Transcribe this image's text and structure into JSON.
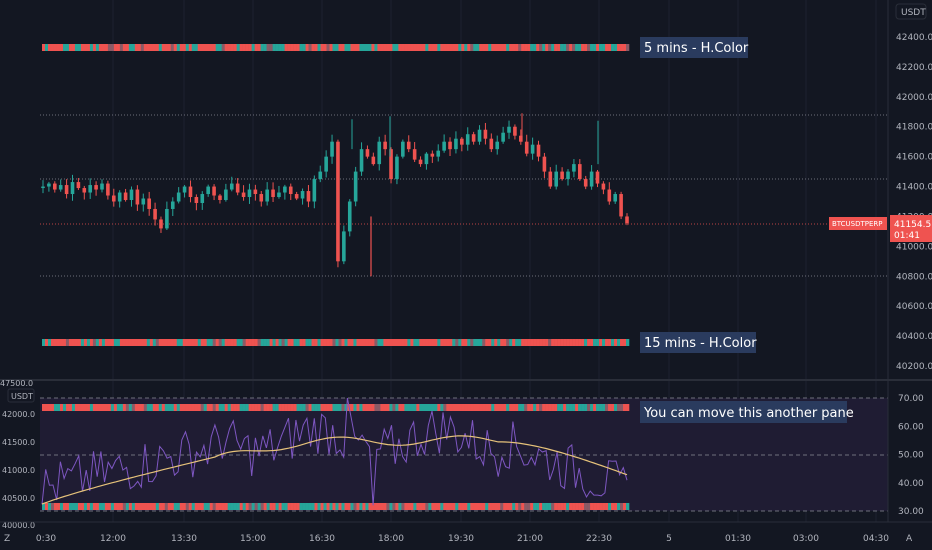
{
  "chart": {
    "currency_label": "USDT",
    "symbol_tag": "BTCUSDTPERP",
    "last_price": "41154.5",
    "countdown": "01:41",
    "price_ticks": [
      "42400.0",
      "42200.0",
      "42000.0",
      "41800.0",
      "41600.0",
      "41400.0",
      "41200.0",
      "41000.0",
      "40800.0",
      "40600.0",
      "40400.0",
      "40200.0"
    ],
    "rsi_ticks": [
      "70.00",
      "60.00",
      "50.00",
      "40.00",
      "30.00"
    ],
    "left_ticks": [
      "42000.0",
      "41500.0",
      "41000.0",
      "40500.0",
      "40000.0"
    ],
    "left_top_partial": "47500.0",
    "left_currency_label": "USDT",
    "time_ticks": [
      "0:30",
      "12:00",
      "13:30",
      "15:00",
      "16:30",
      "18:00",
      "19:30",
      "21:00",
      "22:30",
      "5",
      "01:30",
      "03:00",
      "04:30"
    ],
    "annotations": {
      "five_min": "5 mins - H.Color",
      "fifteen_min": "15 mins - H.Color",
      "move_pane": "You can move this another pane"
    },
    "bottom_left_icon": "Z",
    "bottom_right_icon": "A",
    "colors": {
      "background": "#131722",
      "bull": "#26a69a",
      "bear": "#ef5350",
      "rsi_line": "#7e57c2",
      "rsi_ma": "#e6c27a",
      "rsi_band": "#2a2440",
      "tag_bg": "#ef5350",
      "annotation_bg": "#2a3b5e"
    }
  },
  "chart_data": {
    "type": "candlestick",
    "title": "",
    "price_axis_range": [
      40100,
      42500
    ],
    "horizontal_levels": [
      41900,
      41450,
      41154.5,
      40800
    ],
    "close_path": [
      41400,
      41420,
      41380,
      41410,
      41350,
      41430,
      41390,
      41360,
      41410,
      41380,
      41420,
      41340,
      41300,
      41360,
      41310,
      41380,
      41280,
      41320,
      41250,
      41180,
      41120,
      41250,
      41300,
      41360,
      41400,
      41330,
      41290,
      41350,
      41400,
      41340,
      41310,
      41380,
      41420,
      41360,
      41330,
      41380,
      41350,
      41300,
      41380,
      41330,
      41360,
      41400,
      41350,
      41320,
      41370,
      41300,
      41450,
      41500,
      41600,
      41700,
      40900,
      41100,
      41300,
      41500,
      41650,
      41600,
      41550,
      41700,
      41650,
      41450,
      41600,
      41700,
      41650,
      41580,
      41550,
      41620,
      41600,
      41640,
      41700,
      41650,
      41720,
      41680,
      41750,
      41700,
      41780,
      41720,
      41650,
      41700,
      41760,
      41800,
      41740,
      41700,
      41620,
      41680,
      41600,
      41500,
      41400,
      41500,
      41450,
      41500,
      41550,
      41450,
      41400,
      41500,
      41420,
      41380,
      41300,
      41350,
      41200,
      41154.5
    ]
  }
}
